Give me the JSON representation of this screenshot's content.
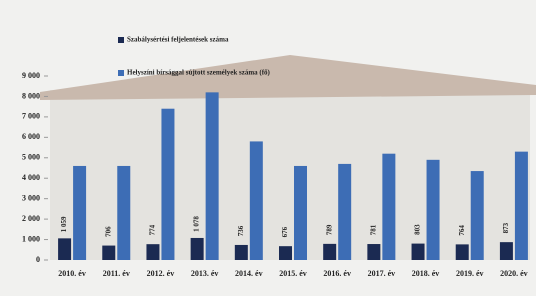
{
  "chart_data": {
    "type": "bar",
    "categories": [
      "2010. év",
      "2011. év",
      "2012. év",
      "2013. év",
      "2014. év",
      "2015. év",
      "2016. év",
      "2017. év",
      "2018. év",
      "2019. év",
      "2020. év"
    ],
    "series": [
      {
        "name": "Szabálysértési feljelentések száma",
        "color": "#1b2a52",
        "values": [
          1059,
          706,
          774,
          1078,
          736,
          676,
          789,
          781,
          803,
          764,
          873
        ],
        "value_labels": [
          "1 059",
          "706",
          "774",
          "1 078",
          "736",
          "676",
          "789",
          "781",
          "803",
          "764",
          "873"
        ]
      },
      {
        "name": "Helyszíni bírsággal sújtott személyek száma (fő)",
        "color": "#3d6db5",
        "values": [
          4600,
          4600,
          7400,
          8200,
          5800,
          4600,
          4700,
          5200,
          4900,
          4350,
          5300
        ]
      }
    ],
    "ylim": [
      0,
      9000
    ],
    "yticks": [
      0,
      {
        "value": 1000,
        "label": "1 000"
      },
      {
        "value": 2000,
        "label": "2 000"
      },
      {
        "value": 3000,
        "label": "3 000"
      },
      {
        "value": 4000,
        "label": "4 000"
      },
      {
        "value": 5000,
        "label": "5 000"
      },
      {
        "value": 6000,
        "label": "6 000"
      },
      {
        "value": 7000,
        "label": "7 000"
      },
      {
        "value": 8000,
        "label": "8 000"
      },
      {
        "value": 9000,
        "label": "9 000"
      }
    ],
    "grid": false
  }
}
